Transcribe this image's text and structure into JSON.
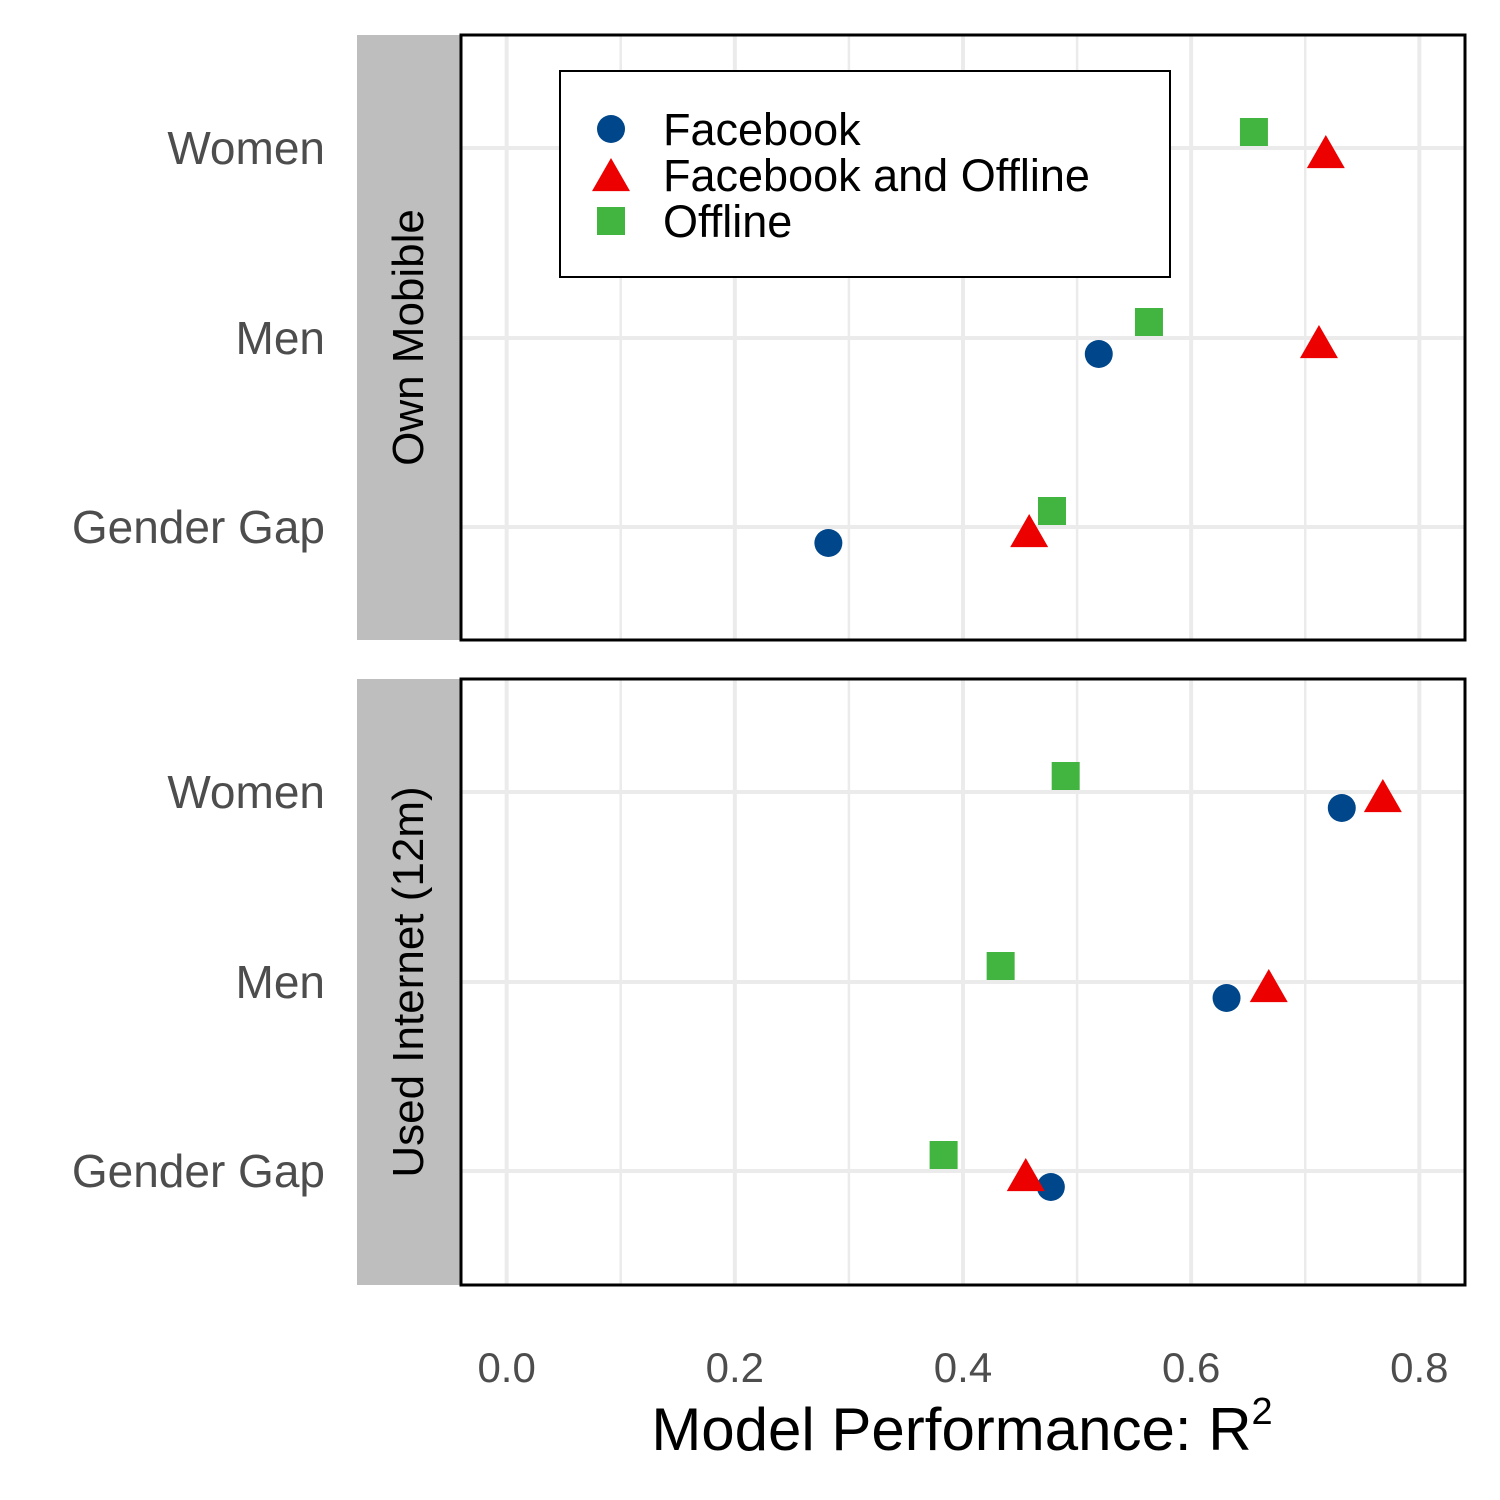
{
  "chart_data": {
    "type": "scatter",
    "xlabel": "Model Performance: R",
    "xlabel_superscript": "2",
    "xlim": [
      -0.04,
      0.84
    ],
    "x_ticks": [
      "0.0",
      "0.2",
      "0.4",
      "0.6",
      "0.8"
    ],
    "y_categories": [
      "Gender Gap",
      "Men",
      "Women"
    ],
    "grid": true,
    "legend_position": "top-left",
    "series_styles": [
      {
        "name": "Facebook",
        "color": "#00468b",
        "shape": "circle"
      },
      {
        "name": "Facebook and Offline",
        "color": "#ed0000",
        "shape": "triangle"
      },
      {
        "name": "Offline",
        "color": "#42b540",
        "shape": "square"
      }
    ],
    "panels": [
      {
        "strip_label": "Own Mobible",
        "series": [
          {
            "name": "Facebook",
            "values": {
              "Gender Gap": 0.282,
              "Men": 0.519
            }
          },
          {
            "name": "Facebook and Offline",
            "values": {
              "Gender Gap": 0.458,
              "Men": 0.712,
              "Women": 0.718
            }
          },
          {
            "name": "Offline",
            "values": {
              "Gender Gap": 0.478,
              "Men": 0.563,
              "Women": 0.655
            }
          }
        ]
      },
      {
        "strip_label": "Used Internet (12m)",
        "series": [
          {
            "name": "Facebook",
            "values": {
              "Gender Gap": 0.477,
              "Men": 0.631,
              "Women": 0.732
            }
          },
          {
            "name": "Facebook and Offline",
            "values": {
              "Gender Gap": 0.455,
              "Men": 0.668,
              "Women": 0.768
            }
          },
          {
            "name": "Offline",
            "values": {
              "Gender Gap": 0.383,
              "Men": 0.433,
              "Women": 0.49
            }
          }
        ]
      }
    ]
  }
}
